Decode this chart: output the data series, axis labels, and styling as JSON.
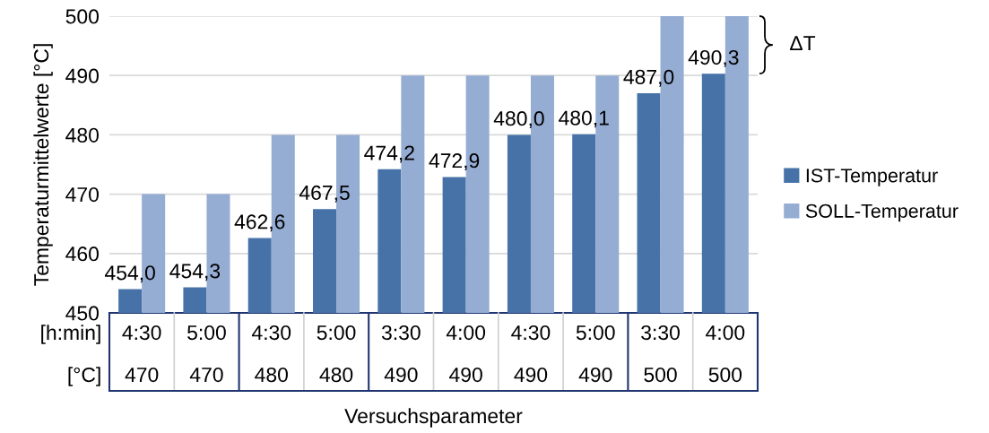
{
  "chart_data": {
    "type": "bar",
    "categories": [
      "4:30\n470",
      "5:00\n470",
      "4:30\n480",
      "5:00\n480",
      "3:30\n490",
      "4:00\n490",
      "4:30\n490",
      "5:00\n490",
      "3:30\n500",
      "4:00\n500"
    ],
    "series": [
      {
        "name": "IST-Temperatur",
        "color": "#4672a8",
        "values": [
          454.0,
          454.3,
          462.6,
          467.5,
          474.2,
          472.9,
          480.0,
          480.1,
          487.0,
          490.3
        ],
        "value_labels": [
          "454,0",
          "454,3",
          "462,6",
          "467,5",
          "474,2",
          "472,9",
          "480,0",
          "480,1",
          "487,0",
          "490,3"
        ]
      },
      {
        "name": "SOLL-Temperatur",
        "color": "#95acd3",
        "values": [
          470,
          470,
          480,
          480,
          490,
          490,
          490,
          490,
          500,
          500
        ]
      }
    ],
    "xlabel": "Versuchsparameter",
    "ylabel": "Temperaturmittelwerte [°C]",
    "annotations": [
      "[h:min]",
      "[°C]",
      "ΔT"
    ],
    "ylim": [
      450,
      500
    ],
    "yticks": [
      450,
      460,
      470,
      480,
      490,
      500
    ],
    "grid": "y",
    "legend": "right"
  }
}
